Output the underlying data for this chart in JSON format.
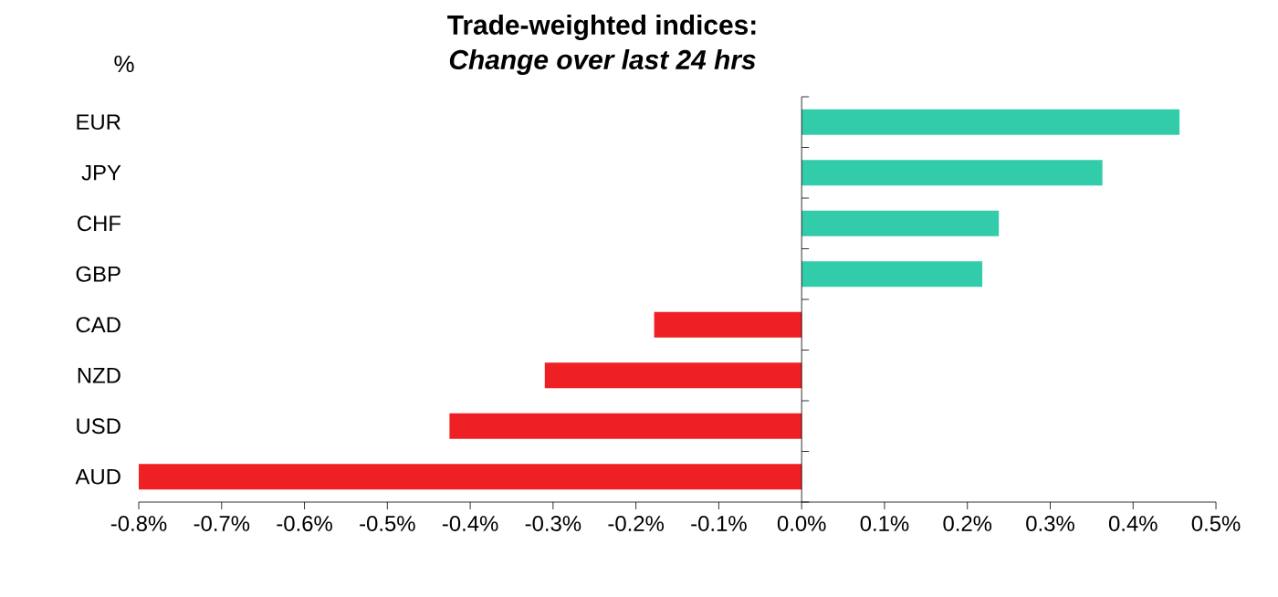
{
  "chart_data": {
    "type": "bar",
    "orientation": "horizontal",
    "title": "Trade-weighted indices:",
    "subtitle": "Change over last 24 hrs",
    "ylabel": "%",
    "categories": [
      "EUR",
      "JPY",
      "CHF",
      "GBP",
      "CAD",
      "NZD",
      "USD",
      "AUD"
    ],
    "values": [
      0.456,
      0.363,
      0.238,
      0.218,
      -0.178,
      -0.31,
      -0.425,
      -0.8
    ],
    "colors": [
      "#33ccaa",
      "#33ccaa",
      "#33ccaa",
      "#33ccaa",
      "#ee2024",
      "#ee2024",
      "#ee2024",
      "#ee2024"
    ],
    "xlim": [
      -0.8,
      0.5
    ],
    "xticks": [
      {
        "value": -0.8,
        "label": "-0.8%"
      },
      {
        "value": -0.7,
        "label": "-0.7%"
      },
      {
        "value": -0.6,
        "label": "-0.6%"
      },
      {
        "value": -0.5,
        "label": "-0.5%"
      },
      {
        "value": -0.4,
        "label": "-0.4%"
      },
      {
        "value": -0.3,
        "label": "-0.3%"
      },
      {
        "value": -0.2,
        "label": "-0.2%"
      },
      {
        "value": -0.1,
        "label": "-0.1%"
      },
      {
        "value": 0.0,
        "label": "0.0%"
      },
      {
        "value": 0.1,
        "label": "0.1%"
      },
      {
        "value": 0.2,
        "label": "0.2%"
      },
      {
        "value": 0.3,
        "label": "0.3%"
      },
      {
        "value": 0.4,
        "label": "0.4%"
      },
      {
        "value": 0.5,
        "label": "0.5%"
      }
    ]
  }
}
